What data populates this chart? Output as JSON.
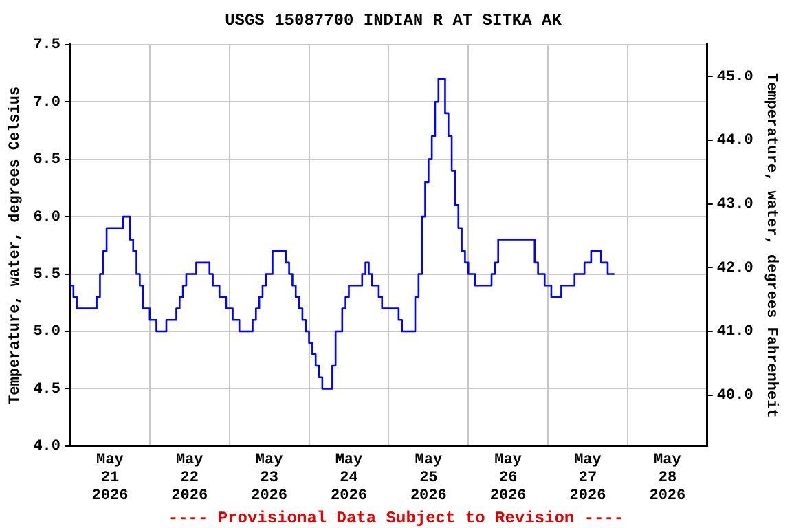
{
  "chart_data": {
    "type": "step",
    "title": "USGS 15087700 INDIAN R AT SITKA AK",
    "ylabel": "Temperature, water, degrees Celsius",
    "y2label": "Temperature, water, degrees Fahrenheit",
    "annotations": [
      "---- Provisional Data Subject to Revision ----"
    ],
    "x": [
      "2026-05-21T00:00",
      "2026-05-21T01:00",
      "2026-05-21T02:00",
      "2026-05-21T04:00",
      "2026-05-21T08:00",
      "2026-05-21T09:00",
      "2026-05-21T10:00",
      "2026-05-21T11:00",
      "2026-05-21T12:00",
      "2026-05-21T16:00",
      "2026-05-21T17:00",
      "2026-05-21T18:00",
      "2026-05-21T19:00",
      "2026-05-21T20:00",
      "2026-05-21T21:00",
      "2026-05-21T22:00",
      "2026-05-22T00:00",
      "2026-05-22T02:00",
      "2026-05-22T05:00",
      "2026-05-22T08:00",
      "2026-05-22T09:00",
      "2026-05-22T10:00",
      "2026-05-22T11:00",
      "2026-05-22T14:00",
      "2026-05-22T16:00",
      "2026-05-22T18:00",
      "2026-05-22T19:00",
      "2026-05-22T21:00",
      "2026-05-22T23:00",
      "2026-05-23T01:00",
      "2026-05-23T03:00",
      "2026-05-23T05:00",
      "2026-05-23T07:00",
      "2026-05-23T08:00",
      "2026-05-23T09:00",
      "2026-05-23T10:00",
      "2026-05-23T11:00",
      "2026-05-23T12:00",
      "2026-05-23T13:00",
      "2026-05-23T14:00",
      "2026-05-23T17:00",
      "2026-05-23T18:00",
      "2026-05-23T19:00",
      "2026-05-23T20:00",
      "2026-05-23T21:00",
      "2026-05-23T22:00",
      "2026-05-23T23:00",
      "2026-05-24T00:00",
      "2026-05-24T01:00",
      "2026-05-24T02:00",
      "2026-05-24T03:00",
      "2026-05-24T04:00",
      "2026-05-24T05:00",
      "2026-05-24T07:00",
      "2026-05-24T08:00",
      "2026-05-24T10:00",
      "2026-05-24T11:00",
      "2026-05-24T12:00",
      "2026-05-24T14:00",
      "2026-05-24T16:00",
      "2026-05-24T17:00",
      "2026-05-24T18:00",
      "2026-05-24T19:00",
      "2026-05-24T21:00",
      "2026-05-24T22:00",
      "2026-05-25T00:00",
      "2026-05-25T03:00",
      "2026-05-25T04:00",
      "2026-05-25T06:00",
      "2026-05-25T08:00",
      "2026-05-25T09:00",
      "2026-05-25T10:00",
      "2026-05-25T11:00",
      "2026-05-25T12:00",
      "2026-05-25T13:00",
      "2026-05-25T14:00",
      "2026-05-25T15:00",
      "2026-05-25T16:00",
      "2026-05-25T17:00",
      "2026-05-25T18:00",
      "2026-05-25T19:00",
      "2026-05-25T20:00",
      "2026-05-25T21:00",
      "2026-05-25T22:00",
      "2026-05-25T23:00",
      "2026-05-26T00:00",
      "2026-05-26T02:00",
      "2026-05-26T04:00",
      "2026-05-26T07:00",
      "2026-05-26T08:00",
      "2026-05-26T09:00",
      "2026-05-26T10:00",
      "2026-05-26T20:00",
      "2026-05-26T21:00",
      "2026-05-26T23:00",
      "2026-05-27T01:00",
      "2026-05-27T04:00",
      "2026-05-27T08:00",
      "2026-05-27T11:00",
      "2026-05-27T13:00",
      "2026-05-27T16:00",
      "2026-05-27T18:00",
      "2026-05-27T20:00"
    ],
    "series": [
      {
        "color": "#0000ff",
        "values": [
          5.5,
          5.4,
          5.3,
          5.2,
          5.2,
          5.3,
          5.5,
          5.7,
          5.9,
          5.9,
          6.0,
          6.0,
          5.8,
          5.7,
          5.5,
          5.4,
          5.2,
          5.1,
          5.0,
          5.1,
          5.2,
          5.3,
          5.4,
          5.5,
          5.6,
          5.6,
          5.5,
          5.4,
          5.3,
          5.2,
          5.1,
          5.0,
          5.0,
          5.1,
          5.2,
          5.3,
          5.4,
          5.5,
          5.5,
          5.7,
          5.7,
          5.6,
          5.5,
          5.4,
          5.3,
          5.2,
          5.1,
          5.0,
          4.9,
          4.8,
          4.7,
          4.6,
          4.5,
          4.5,
          4.7,
          5.0,
          5.2,
          5.3,
          5.4,
          5.4,
          5.5,
          5.6,
          5.5,
          5.4,
          5.3,
          5.2,
          5.2,
          5.1,
          5.0,
          5.0,
          5.3,
          5.5,
          6.0,
          6.3,
          6.5,
          6.7,
          7.0,
          7.2,
          7.2,
          6.9,
          6.7,
          6.4,
          6.1,
          5.9,
          5.7,
          5.6,
          5.5,
          5.4,
          5.4,
          5.5,
          5.6,
          5.8,
          5.8,
          5.6,
          5.5,
          5.4,
          5.3,
          5.4,
          5.5,
          5.6,
          5.7,
          5.6,
          5.5
        ]
      }
    ],
    "xlim": [
      "2026-05-21T00:00",
      "2026-05-29T00:00"
    ],
    "xticks": [
      {
        "value": "2026-05-21T12:00",
        "label": "May 21 2026"
      },
      {
        "value": "2026-05-22T00:00",
        "label": null
      },
      {
        "value": "2026-05-22T12:00",
        "label": "May 22 2026"
      },
      {
        "value": "2026-05-23T00:00",
        "label": null
      },
      {
        "value": "2026-05-23T12:00",
        "label": "May 23 2026"
      },
      {
        "value": "2026-05-24T00:00",
        "label": null
      },
      {
        "value": "2026-05-24T12:00",
        "label": "May 24 2026"
      },
      {
        "value": "2026-05-25T00:00",
        "label": null
      },
      {
        "value": "2026-05-25T12:00",
        "label": "May 25 2026"
      },
      {
        "value": "2026-05-26T00:00",
        "label": null
      },
      {
        "value": "2026-05-26T12:00",
        "label": "May 26 2026"
      },
      {
        "value": "2026-05-27T00:00",
        "label": null
      },
      {
        "value": "2026-05-27T12:00",
        "label": "May 27 2026"
      },
      {
        "value": "2026-05-28T00:00",
        "label": null
      },
      {
        "value": "2026-05-28T12:00",
        "label": "May 28 2026"
      }
    ],
    "ylim": [
      4.0,
      7.5
    ],
    "yticks": [
      {
        "value": 4,
        "label": "4.0"
      },
      4.5,
      {
        "value": 5,
        "label": "5.0"
      },
      5.5,
      {
        "value": 6,
        "label": "6.0"
      },
      6.5,
      {
        "value": 7,
        "label": "7.0"
      },
      7.5
    ],
    "y2lim": [
      39.2,
      45.5
    ],
    "y2ticks": [
      {
        "value": 40,
        "label": "40.0"
      },
      {
        "value": 41,
        "label": "41.0"
      },
      {
        "value": 42,
        "label": "42.0"
      },
      {
        "value": 43,
        "label": "43.0"
      },
      {
        "value": 44,
        "label": "44.0"
      },
      {
        "value": 45,
        "label": "45.0"
      }
    ],
    "grid": true,
    "legend": false,
    "marker": "none",
    "line_style": "solid"
  }
}
